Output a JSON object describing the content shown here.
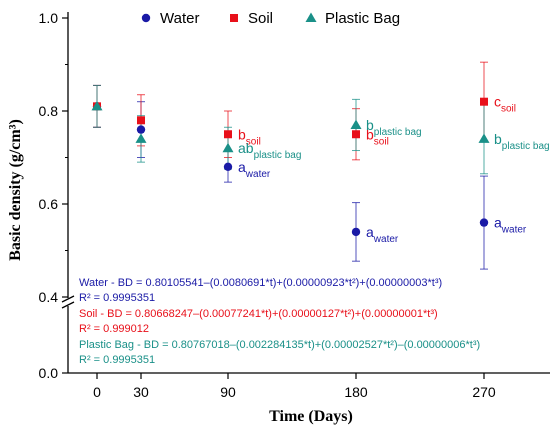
{
  "chart_data": {
    "type": "scatter",
    "xlabel": "Time (Days)",
    "ylabel": "Basic density (g/cm³)",
    "x_ticks": [
      "0",
      "30",
      "90",
      "180",
      "270"
    ],
    "y_ticks": [
      "0.0",
      "0.4",
      "0.6",
      "0.8",
      "1.0"
    ],
    "y_axis_break": [
      0.0,
      0.4
    ],
    "xlim": [
      -10,
      285
    ],
    "ylim_upper": [
      0.4,
      1.0
    ],
    "grid": false,
    "legend_position": "top-center",
    "legend": [
      {
        "label": "Water",
        "marker": "circle",
        "color": "#1a1aa6"
      },
      {
        "label": "Soil",
        "marker": "square",
        "color": "#e8101a"
      },
      {
        "label": "Plastic Bag",
        "marker": "triangle",
        "color": "#1a9088"
      }
    ],
    "series": [
      {
        "name": "Water",
        "color": "#1a1aa6",
        "marker": "circle",
        "points": [
          {
            "x": 0,
            "y": 0.81,
            "err": 0.045,
            "label": "",
            "sub": ""
          },
          {
            "x": 30,
            "y": 0.76,
            "err": 0.06,
            "label": "",
            "sub": ""
          },
          {
            "x": 90,
            "y": 0.68,
            "err": 0.033,
            "label": "a",
            "sub": "water"
          },
          {
            "x": 180,
            "y": 0.54,
            "err": 0.063,
            "label": "a",
            "sub": "water"
          },
          {
            "x": 270,
            "y": 0.56,
            "err": 0.1,
            "label": "a",
            "sub": "water"
          }
        ]
      },
      {
        "name": "Soil",
        "color": "#e8101a",
        "marker": "square",
        "points": [
          {
            "x": 0,
            "y": 0.81,
            "err": 0.045,
            "label": "",
            "sub": ""
          },
          {
            "x": 30,
            "y": 0.78,
            "err": 0.055,
            "label": "",
            "sub": ""
          },
          {
            "x": 90,
            "y": 0.75,
            "err": 0.05,
            "label": "b",
            "sub": "soil"
          },
          {
            "x": 180,
            "y": 0.75,
            "err": 0.055,
            "label": "b",
            "sub": "soil"
          },
          {
            "x": 270,
            "y": 0.82,
            "err": 0.085,
            "label": "c",
            "sub": "soil"
          }
        ]
      },
      {
        "name": "Plastic Bag",
        "color": "#1a9088",
        "marker": "triangle",
        "points": [
          {
            "x": 0,
            "y": 0.81,
            "err": 0.045,
            "label": "",
            "sub": ""
          },
          {
            "x": 30,
            "y": 0.74,
            "err": 0.05,
            "label": "",
            "sub": ""
          },
          {
            "x": 90,
            "y": 0.72,
            "err": 0.045,
            "label": "ab",
            "sub": "plastic bag"
          },
          {
            "x": 180,
            "y": 0.77,
            "err": 0.055,
            "label": "b",
            "sub": "plastic bag"
          },
          {
            "x": 270,
            "y": 0.74,
            "err": 0.075,
            "label": "b",
            "sub": "plastic bag"
          }
        ]
      }
    ],
    "equations": [
      {
        "color": "#1a1aa6",
        "line1": "Water - BD = 0.80105541–(0.0080691*t)+(0.00000923*t²)+(0.00000003*t³)",
        "line2": "R² = 0.9995351"
      },
      {
        "color": "#e8101a",
        "line1": "Soil - BD = 0.80668247–(0.00077241*t)+(0.00000127*t²)+(0.00000001*t³)",
        "line2": "R² = 0.999012"
      },
      {
        "color": "#1a9088",
        "line1": "Plastic Bag - BD = 0.80767018–(0.002284135*t)+(0.00002527*t²)–(0.00000006*t³)",
        "line2": "R² = 0.9995351"
      }
    ]
  }
}
